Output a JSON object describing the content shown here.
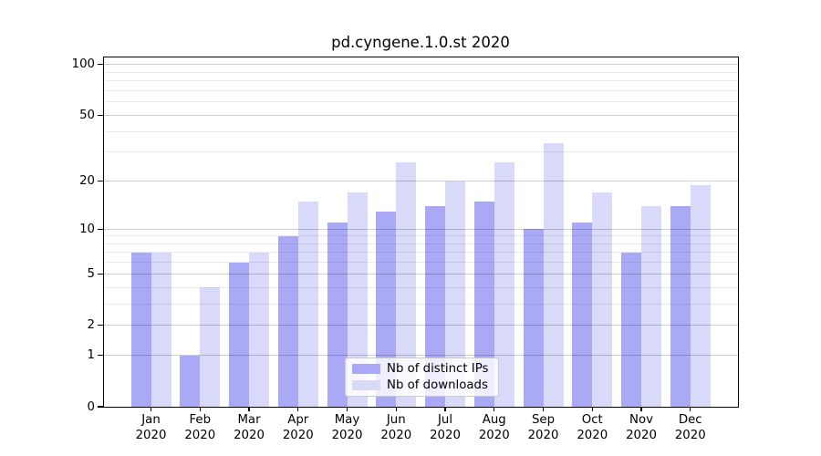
{
  "chart_data": {
    "type": "bar",
    "title": "pd.cyngene.1.0.st 2020",
    "categories": [
      "Jan",
      "Feb",
      "Mar",
      "Apr",
      "May",
      "Jun",
      "Jul",
      "Aug",
      "Sep",
      "Oct",
      "Nov",
      "Dec"
    ],
    "year": "2020",
    "series": [
      {
        "name": "Nb of distinct IPs",
        "color": "#a9a9f6",
        "values": [
          7,
          1,
          6,
          9,
          11,
          13,
          14,
          15,
          10,
          11,
          7,
          14
        ]
      },
      {
        "name": "Nb of downloads",
        "color": "#d9d9f9",
        "values": [
          7,
          4,
          7,
          15,
          17,
          26,
          20,
          26,
          34,
          17,
          14,
          19
        ]
      }
    ],
    "yscale": "log1p",
    "ylim": [
      0,
      111
    ],
    "yticks_major": [
      0,
      1,
      2,
      5,
      10,
      20,
      50,
      100
    ],
    "yticks_minor": [
      3,
      4,
      6,
      7,
      8,
      9,
      30,
      40,
      60,
      70,
      80,
      90
    ],
    "xlabel": "",
    "ylabel": "",
    "grid": "major+minor, drawn over bars",
    "legend_position": "bottom-center-inside"
  },
  "colors": {
    "distinct_ips_bar": "#a9a9f6",
    "downloads_bar": "#d9d9f9",
    "major_gridline": "#cccccc",
    "minor_gridline": "#ebebeb",
    "axis": "#000000",
    "legend_border": "#cbcbcb",
    "background": "#ffffff"
  }
}
